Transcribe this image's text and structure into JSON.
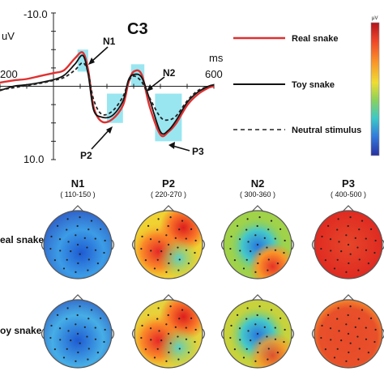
{
  "chart_data": [
    {
      "type": "line",
      "title": "C3",
      "ylabel": "uV",
      "xlabel": "ms",
      "x_axis": {
        "range": [
          -200,
          600
        ],
        "tick_labels": [
          "200",
          "600"
        ]
      },
      "y_axis": {
        "range": [
          -10,
          10
        ],
        "inverted": true,
        "tick_labels": [
          "-10.0",
          "10.0"
        ]
      },
      "x": [
        -200,
        -150,
        -100,
        -50,
        0,
        40,
        80,
        110,
        130,
        150,
        180,
        220,
        260,
        280,
        300,
        330,
        360,
        400,
        430,
        460,
        500,
        540,
        580,
        600
      ],
      "series": [
        {
          "name": "Real snake",
          "color": "#e03030",
          "dash": "solid",
          "values": [
            -0.5,
            -0.8,
            -1.0,
            -1.4,
            -1.8,
            -2.2,
            -3.8,
            -4.6,
            -2.2,
            2.8,
            4.8,
            4.5,
            2.6,
            -0.4,
            -2.0,
            -1.6,
            2.8,
            6.6,
            6.2,
            5.0,
            2.6,
            1.1,
            0.2,
            0.0
          ]
        },
        {
          "name": "Toy snake",
          "color": "#111111",
          "dash": "solid",
          "values": [
            0.6,
            0.0,
            -0.2,
            -0.5,
            -0.9,
            -1.5,
            -3.0,
            -4.2,
            -1.6,
            3.2,
            4.2,
            4.0,
            2.0,
            -0.8,
            -1.6,
            -1.2,
            1.8,
            6.2,
            6.0,
            4.6,
            2.2,
            0.8,
            0.0,
            -0.2
          ]
        },
        {
          "name": "Neutral stimulus",
          "color": "#222222",
          "dash": "dashed",
          "values": [
            0.5,
            0.2,
            -0.1,
            -0.4,
            -0.8,
            -1.2,
            -2.2,
            -3.2,
            -1.8,
            1.8,
            3.8,
            3.4,
            1.4,
            -0.6,
            -1.4,
            -0.6,
            1.6,
            4.2,
            4.6,
            4.0,
            2.0,
            0.6,
            0.0,
            -0.2
          ]
        }
      ],
      "components": [
        {
          "label": "N1",
          "window": [
            90,
            130
          ],
          "bounds": [
            -5,
            -2
          ]
        },
        {
          "label": "P2",
          "window": [
            200,
            260
          ],
          "bounds": [
            1,
            5
          ]
        },
        {
          "label": "N2",
          "window": [
            290,
            340
          ],
          "bounds": [
            -3,
            0
          ]
        },
        {
          "label": "P3",
          "window": [
            380,
            480
          ],
          "bounds": [
            1,
            7.5
          ]
        }
      ],
      "colorbar": {
        "top_label": "μV",
        "colors": [
          "#b4141e",
          "#f04628",
          "#fa9628",
          "#f0dc32",
          "#8cd25a",
          "#3cc8c8",
          "#3278dc",
          "#2830a0"
        ]
      }
    },
    {
      "type": "heatmap",
      "columns": [
        {
          "label": "N1",
          "window": "( 110-150 )"
        },
        {
          "label": "P2",
          "window": "( 220-270 )"
        },
        {
          "label": "N2",
          "window": "( 300-360 )"
        },
        {
          "label": "P3",
          "window": "( 400-500 )"
        }
      ],
      "rows": [
        {
          "label": "eal snake"
        },
        {
          "label": "oy snake"
        }
      ]
    }
  ]
}
